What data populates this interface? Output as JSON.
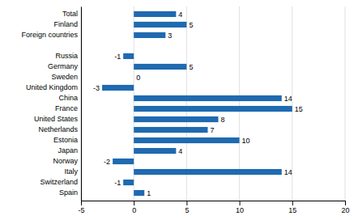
{
  "chart_data": {
    "type": "bar",
    "orientation": "horizontal",
    "categories": [
      "Total",
      "Finland",
      "Foreign countries",
      null,
      "Russia",
      "Germany",
      "Sweden",
      "United Kingdom",
      "China",
      "France",
      "United States",
      "Netherlands",
      "Estonia",
      "Japan",
      "Norway",
      "Italy",
      "Switzerland",
      "Spain"
    ],
    "values": [
      4,
      5,
      3,
      null,
      -1,
      5,
      0,
      -3,
      14,
      15,
      8,
      7,
      10,
      4,
      -2,
      14,
      -1,
      1
    ],
    "color": "#1f6ab0",
    "xlim": [
      -5,
      20
    ],
    "xticks": [
      -5,
      0,
      5,
      10,
      15,
      20
    ],
    "grid": true,
    "data_labels": true
  }
}
